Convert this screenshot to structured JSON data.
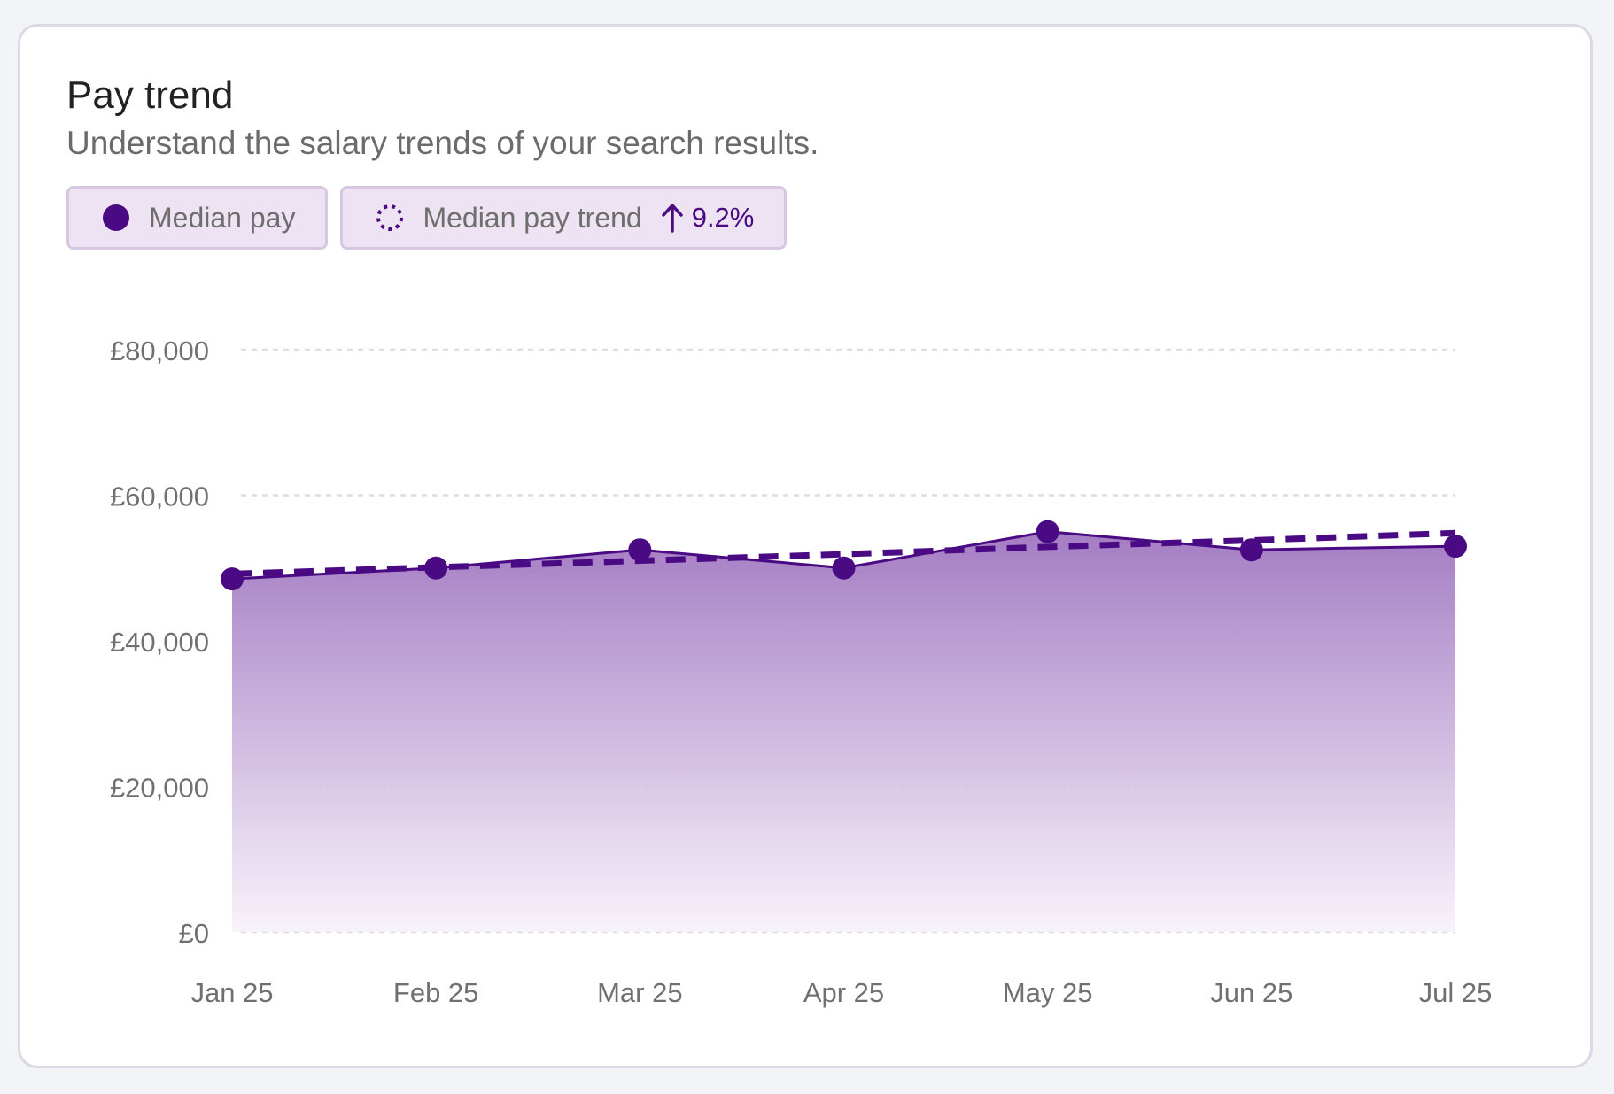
{
  "card": {
    "title": "Pay trend",
    "subtitle": "Understand the salary trends of your search results."
  },
  "legend": {
    "median_label": "Median pay",
    "trend_label": "Median pay trend",
    "trend_change": "9.2%",
    "trend_direction_icon": "arrow-up-icon"
  },
  "colors": {
    "accent": "#4a0a83",
    "area_top": "#9f75c0",
    "area_bottom": "#f7f1fa",
    "grid": "#dedede",
    "chip_bg": "#ede3f2",
    "chip_border": "#d8c7e3"
  },
  "chart_data": {
    "type": "area",
    "categories": [
      "Jan 25",
      "Feb 25",
      "Mar 25",
      "Apr 25",
      "May 25",
      "Jun 25",
      "Jul 25"
    ],
    "series": [
      {
        "name": "Median pay",
        "values": [
          48500,
          50000,
          52500,
          50000,
          55000,
          52500,
          53000
        ],
        "style": "solid-area-with-points"
      },
      {
        "name": "Median pay trend",
        "values": [
          49200,
          50100,
          51000,
          51900,
          52900,
          53800,
          54800
        ],
        "style": "dashed"
      }
    ],
    "y_ticks": [
      0,
      20000,
      40000,
      60000,
      80000
    ],
    "y_tick_labels": [
      "£0",
      "£20,000",
      "£40,000",
      "£60,000",
      "£80,000"
    ],
    "ylim": [
      0,
      80000
    ],
    "grid": true,
    "legend_position": "top-left"
  }
}
